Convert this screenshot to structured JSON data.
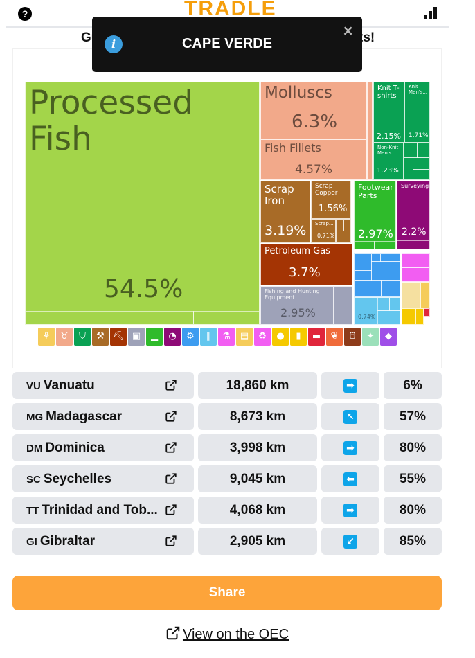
{
  "header": {
    "logo": "TRADLE",
    "help_icon": "question-icon",
    "stats_icon": "bar-chart-icon"
  },
  "subtitle": {
    "left": "Gu",
    "right": "ts!"
  },
  "toast": {
    "message": "CAPE VERDE",
    "close": "×"
  },
  "treemap": {
    "items": [
      {
        "label": "Processed Fish",
        "pct": "54.5%",
        "color": "#a3d54a"
      },
      {
        "label": "Molluscs",
        "pct": "6.3%",
        "color": "#f2a98a"
      },
      {
        "label": "Fish Fillets",
        "pct": "4.57%",
        "color": "#f2a98a"
      },
      {
        "label": "Knit T-shirts",
        "pct": "2.15%",
        "color": "#0aa153"
      },
      {
        "label": "Knit Men's...",
        "pct": "1.71%",
        "color": "#0aa153"
      },
      {
        "label": "Non-Knit Men's...",
        "pct": "1.23%",
        "color": "#0aa153"
      },
      {
        "label": "Scrap Iron",
        "pct": "3.19%",
        "color": "#a86b27"
      },
      {
        "label": "Scrap Copper",
        "pct": "1.56%",
        "color": "#a86b27"
      },
      {
        "label": "Scrap...",
        "pct": "0.71%",
        "color": "#a86b27"
      },
      {
        "label": "Footwear Parts",
        "pct": "2.97%",
        "color": "#2fbb2b"
      },
      {
        "label": "Surveying...",
        "pct": "2.2%",
        "color": "#8e0a76"
      },
      {
        "label": "Petroleum Gas",
        "pct": "3.7%",
        "color": "#a43404"
      },
      {
        "label": "Fishing and Hunting Equipment",
        "pct": "2.95%",
        "color": "#9ea2b8"
      },
      {
        "label": "",
        "pct": "0.74%",
        "color": "#63c6ee"
      }
    ],
    "category_icons": [
      {
        "icon": "wheat-icon",
        "color": "#f5cc5a"
      },
      {
        "icon": "animal-icon",
        "color": "#f2a98a"
      },
      {
        "icon": "shirt-icon",
        "color": "#0aa153"
      },
      {
        "icon": "anvil-icon",
        "color": "#a86b27"
      },
      {
        "icon": "pickaxe-icon",
        "color": "#a43404"
      },
      {
        "icon": "box-icon",
        "color": "#9ea2b8"
      },
      {
        "icon": "shoe-icon",
        "color": "#2fbb2b"
      },
      {
        "icon": "gauge-icon",
        "color": "#8e0a76"
      },
      {
        "icon": "gear-icon",
        "color": "#3d9cf0"
      },
      {
        "icon": "road-icon",
        "color": "#63c6ee"
      },
      {
        "icon": "flask-icon",
        "color": "#f25ef2"
      },
      {
        "icon": "scroll-icon",
        "color": "#f5cc5a"
      },
      {
        "icon": "recycle-icon",
        "color": "#f25ef2"
      },
      {
        "icon": "fruit-icon",
        "color": "#f5c900"
      },
      {
        "icon": "bottle-icon",
        "color": "#f5c900"
      },
      {
        "icon": "cable-icon",
        "color": "#e0263b"
      },
      {
        "icon": "leaf-icon",
        "color": "#f06b3a"
      },
      {
        "icon": "easel-icon",
        "color": "#8d3b1a"
      },
      {
        "icon": "hide-icon",
        "color": "#9be0ba"
      },
      {
        "icon": "gem-icon",
        "color": "#9f4fe8"
      }
    ]
  },
  "guesses": [
    {
      "code": "VU",
      "country": "Vanuatu",
      "distance": "18,860 km",
      "arrow": "➡",
      "proximity": "6%"
    },
    {
      "code": "MG",
      "country": "Madagascar",
      "distance": "8,673 km",
      "arrow": "↖",
      "proximity": "57%"
    },
    {
      "code": "DM",
      "country": "Dominica",
      "distance": "3,998 km",
      "arrow": "➡",
      "proximity": "80%"
    },
    {
      "code": "SC",
      "country": "Seychelles",
      "distance": "9,045 km",
      "arrow": "⬅",
      "proximity": "55%"
    },
    {
      "code": "TT",
      "country": "Trinidad and Tob...",
      "distance": "4,068 km",
      "arrow": "➡",
      "proximity": "80%"
    },
    {
      "code": "GI",
      "country": "Gibraltar",
      "distance": "2,905 km",
      "arrow": "↙",
      "proximity": "85%"
    }
  ],
  "share_label": "Share",
  "oec_link": "View on the OEC"
}
